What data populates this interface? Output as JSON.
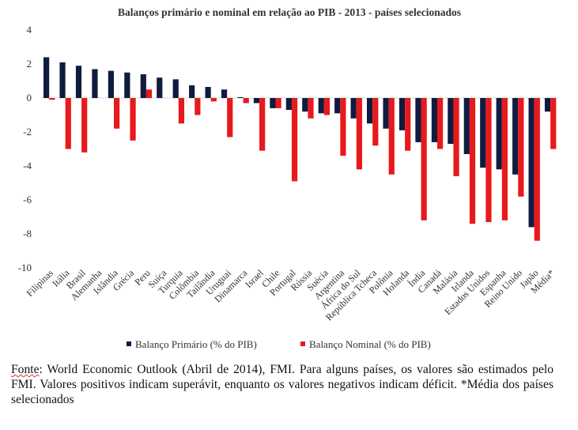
{
  "chart_data": {
    "type": "bar",
    "title": "Balanços primário e nominal em relação ao PIB - 2013 - países selecionados",
    "xlabel": "",
    "ylabel": "",
    "ylim": [
      -10,
      4
    ],
    "yticks": [
      4,
      2,
      0,
      -2,
      -4,
      -6,
      -8,
      -10
    ],
    "legend_position": "bottom",
    "categories": [
      "Filipinas",
      "Itália",
      "Brasil",
      "Alemanha",
      "Islândia",
      "Grécia",
      "Peru",
      "Suíça",
      "Turquia",
      "Colômbia",
      "Tailândia",
      "Uruguai",
      "Dinamarca",
      "Israel",
      "Chile",
      "Portugal",
      "Rússia",
      "Suécia",
      "Argentina",
      "África do Sul",
      "República Tcheca",
      "Polônia",
      "Holanda",
      "Índia",
      "Canadá",
      "Malásia",
      "Irlanda",
      "Estados Unidos",
      "Espanha",
      "Reino Unido",
      "Japão",
      "Média*"
    ],
    "series": [
      {
        "name": "Balanço Primário (% do PIB)",
        "color": "#0f1c3f",
        "values": [
          2.4,
          2.1,
          1.9,
          1.7,
          1.6,
          1.5,
          1.4,
          1.2,
          1.1,
          0.75,
          0.65,
          0.5,
          0.05,
          -0.3,
          -0.6,
          -0.7,
          -0.8,
          -0.9,
          -0.9,
          -1.2,
          -1.5,
          -1.8,
          -1.9,
          -2.6,
          -2.6,
          -2.7,
          -3.3,
          -4.1,
          -4.2,
          -4.5,
          -7.6,
          -0.8
        ]
      },
      {
        "name": "Balanço Nominal (% do PIB)",
        "color": "#e8191b",
        "values": [
          -0.1,
          -3.0,
          -3.2,
          0.0,
          -1.8,
          -2.5,
          0.5,
          0.0,
          -1.5,
          -1.0,
          -0.2,
          -2.3,
          -0.3,
          -3.1,
          -0.6,
          -4.9,
          -1.2,
          -1.0,
          -3.4,
          -4.2,
          -2.8,
          -4.5,
          -3.1,
          -7.2,
          -3.0,
          -4.6,
          -7.4,
          -7.3,
          -7.2,
          -5.8,
          -8.4,
          -3.0
        ]
      }
    ]
  },
  "source": {
    "label": "Fonte",
    "text": ": World Economic Outlook (Abril de 2014), FMI. Para alguns países, os valores são estimados pelo FMI. Valores positivos indicam superávit, enquanto os valores negativos indicam déficit. *Média dos países selecionados"
  }
}
